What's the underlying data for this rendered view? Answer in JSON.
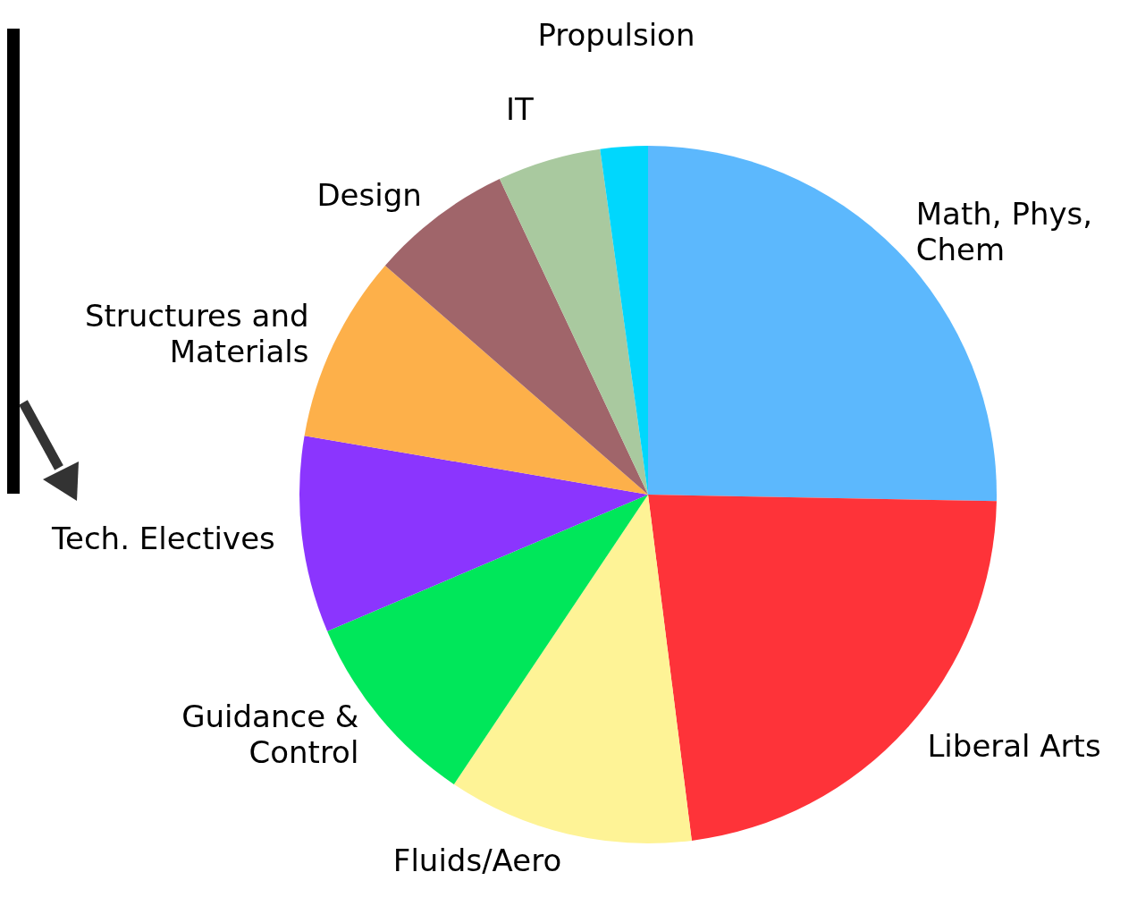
{
  "chart_data": {
    "type": "pie",
    "categories": [
      "Math, Phys, Chem",
      "Liberal Arts",
      "Fluids/Aero",
      "Guidance & Control",
      "Tech. Electives",
      "Structures and Materials",
      "Design",
      "IT",
      "Propulsion"
    ],
    "values": [
      25.3,
      22.7,
      11.4,
      9.2,
      9.1,
      8.7,
      6.6,
      4.8,
      2.2
    ],
    "colors": [
      "#5cb8fd",
      "#fe3339",
      "#fef396",
      "#00e75a",
      "#8b35fe",
      "#fdb04a",
      "#a0656a",
      "#a9c99f",
      "#00d7fd"
    ]
  }
}
